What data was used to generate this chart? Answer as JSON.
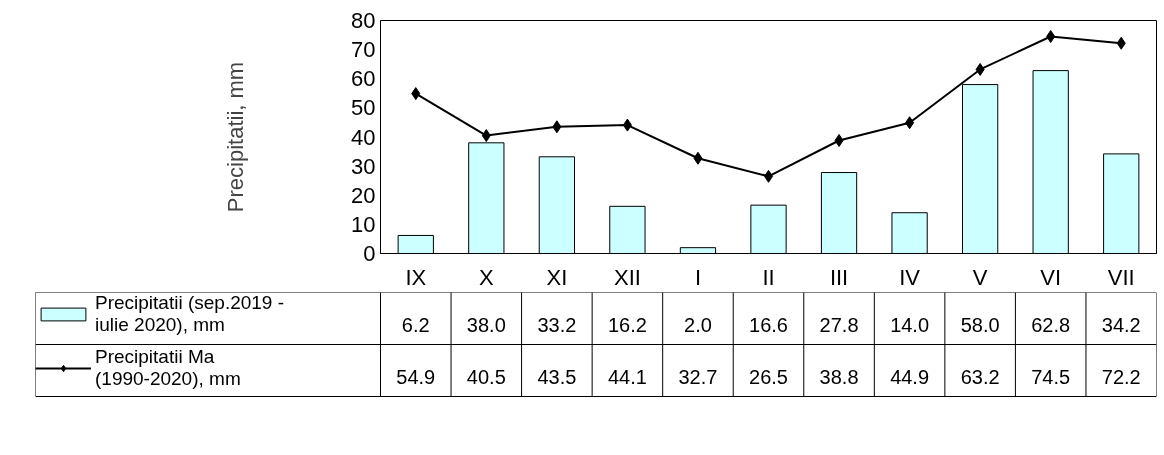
{
  "chart_data": {
    "type": "bar",
    "ylabel": "Precipitatii, mm",
    "categories": [
      "IX",
      "X",
      "XI",
      "XII",
      "I",
      "II",
      "III",
      "IV",
      "V",
      "VI",
      "VII"
    ],
    "ylim": [
      0,
      80
    ],
    "yticks": [
      0,
      10,
      20,
      30,
      40,
      50,
      60,
      70,
      80
    ],
    "grid": false,
    "legend": "bottom",
    "series": [
      {
        "name": "Precipitatii (sep.2019 - iulie 2020), mm",
        "color": "#ccffff",
        "values": [
          6.2,
          38.0,
          33.2,
          16.2,
          2.0,
          16.6,
          27.8,
          14.0,
          58.0,
          62.8,
          34.2
        ],
        "value_labels": [
          "6.2",
          "38.0",
          "33.2",
          "16.2",
          "2.0",
          "16.6",
          "27.8",
          "14.0",
          "58.0",
          "62.8",
          "34.2"
        ]
      },
      {
        "name": "Precipitatii Ma (1990-2020), mm",
        "type": "line",
        "color": "#000000",
        "marker": "diamond",
        "values": [
          54.9,
          40.5,
          43.5,
          44.1,
          32.7,
          26.5,
          38.8,
          44.9,
          63.2,
          74.5,
          72.2
        ],
        "value_labels": [
          "54.9",
          "40.5",
          "43.5",
          "44.1",
          "32.7",
          "26.5",
          "38.8",
          "44.9",
          "63.2",
          "74.5",
          "72.2"
        ]
      }
    ]
  }
}
